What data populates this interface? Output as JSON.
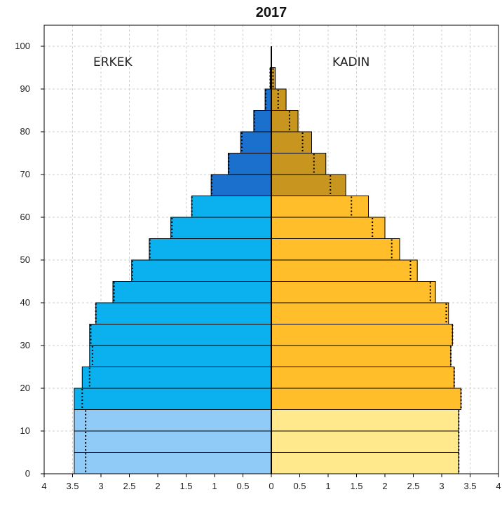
{
  "chart_data": {
    "type": "bar",
    "subtype": "population-pyramid",
    "title": "2017",
    "left_label": "ERKEK",
    "right_label": "KADIN",
    "x_ticks": [
      "4",
      "3.5",
      "3",
      "2.5",
      "2",
      "1.5",
      "1",
      "0.5",
      "0",
      "0.5",
      "1",
      "1.5",
      "2",
      "2.5",
      "3",
      "3.5",
      "4"
    ],
    "y_ticks": [
      "0",
      "10",
      "20",
      "30",
      "40",
      "50",
      "60",
      "70",
      "80",
      "90",
      "100"
    ],
    "xlim": [
      -4,
      4
    ],
    "ylim": [
      0,
      100
    ],
    "grid": true,
    "age_groups": [
      "0-4",
      "5-9",
      "10-14",
      "15-19",
      "20-24",
      "25-29",
      "30-34",
      "35-39",
      "40-44",
      "45-49",
      "50-54",
      "55-59",
      "60-64",
      "65-69",
      "70-74",
      "75-79",
      "80-84",
      "85-89",
      "90+"
    ],
    "series": [
      {
        "name": "ERKEK",
        "values": [
          3.47,
          3.47,
          3.47,
          3.47,
          3.33,
          3.2,
          3.2,
          3.09,
          2.79,
          2.46,
          2.15,
          1.77,
          1.4,
          1.06,
          0.76,
          0.54,
          0.31,
          0.11,
          0.02
        ],
        "reference": [
          3.27,
          3.27,
          3.27,
          3.33,
          3.2,
          3.15,
          3.18,
          3.09,
          2.77,
          2.45,
          2.14,
          1.75,
          1.4,
          1.05,
          0.75,
          0.52,
          0.3,
          0.1,
          0.02
        ],
        "colors": [
          "#8FCBF6",
          "#8FCBF6",
          "#8FCBF6",
          "#0BB0EE",
          "#0BB0EE",
          "#0BB0EE",
          "#0BB0EE",
          "#0BB0EE",
          "#0BB0EE",
          "#0BB0EE",
          "#0BB0EE",
          "#0BB0EE",
          "#0BB0EE",
          "#1A70CC",
          "#1A70CC",
          "#1A70CC",
          "#1A70CC",
          "#1A70CC",
          "#1A70CC"
        ]
      },
      {
        "name": "KADIN",
        "values": [
          3.3,
          3.3,
          3.3,
          3.34,
          3.22,
          3.16,
          3.19,
          3.12,
          2.89,
          2.57,
          2.26,
          2.0,
          1.71,
          1.31,
          0.96,
          0.71,
          0.47,
          0.26,
          0.07
        ],
        "reference": [
          3.3,
          3.3,
          3.3,
          3.34,
          3.22,
          3.16,
          3.19,
          3.08,
          2.8,
          2.45,
          2.12,
          1.78,
          1.41,
          1.04,
          0.75,
          0.55,
          0.32,
          0.12,
          0.03
        ],
        "colors": [
          "#FFE98C",
          "#FFE98C",
          "#FFE98C",
          "#FFBE2A",
          "#FFBE2A",
          "#FFBE2A",
          "#FFBE2A",
          "#FFBE2A",
          "#FFBE2A",
          "#FFBE2A",
          "#FFBE2A",
          "#FFBE2A",
          "#FFBE2A",
          "#C8961E",
          "#C8961E",
          "#C8961E",
          "#C8961E",
          "#C8961E",
          "#C8961E"
        ]
      }
    ]
  }
}
